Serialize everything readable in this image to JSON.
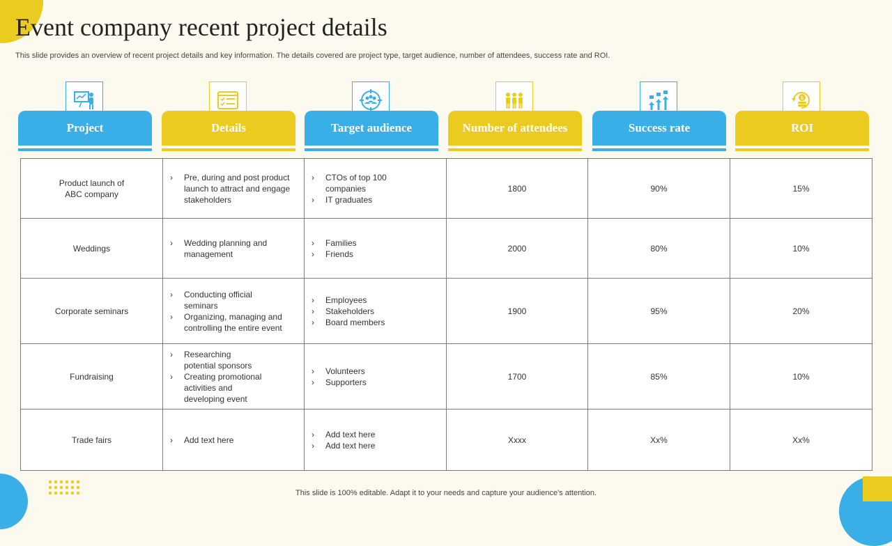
{
  "title": "Event company recent project details",
  "subtitle": "This slide provides an overview of recent project details and key information. The details covered are project type, target audience, number of attendees, success rate and ROI.",
  "headers": [
    {
      "label": "Project",
      "icon": "presentation-icon",
      "color": "#3aaee6"
    },
    {
      "label": "Details",
      "icon": "checklist-icon",
      "color": "#ebcb20"
    },
    {
      "label": "Target audience",
      "icon": "target-audience-icon",
      "color": "#3aaee6"
    },
    {
      "label": "Number of attendees",
      "icon": "people-group-icon",
      "color": "#ebcb20"
    },
    {
      "label": "Success rate",
      "icon": "growth-arrows-icon",
      "color": "#3aaee6"
    },
    {
      "label": "ROI",
      "icon": "coin-return-icon",
      "color": "#ebcb20"
    }
  ],
  "rows": [
    {
      "project": "Product launch of ABC company",
      "details": [
        "Pre, during and post product launch to attract and engage stakeholders"
      ],
      "audience": [
        "CTOs of top 100 companies",
        "IT graduates"
      ],
      "attendees": "1800",
      "success": "90%",
      "roi": "15%"
    },
    {
      "project": "Weddings",
      "details": [
        "Wedding planning and management"
      ],
      "audience": [
        "Families",
        "Friends"
      ],
      "attendees": "2000",
      "success": "80%",
      "roi": "10%"
    },
    {
      "project": "Corporate seminars",
      "details": [
        "Conducting official seminars",
        "Organizing, managing and controlling the entire event"
      ],
      "audience": [
        "Employees",
        "Stakeholders",
        "Board members"
      ],
      "attendees": "1900",
      "success": "95%",
      "roi": "20%"
    },
    {
      "project": "Fundraising",
      "details": [
        "Researching potential sponsors",
        "Creating promotional activities and developing event"
      ],
      "audience": [
        "Volunteers",
        "Supporters"
      ],
      "attendees": "1700",
      "success": "85%",
      "roi": "10%"
    },
    {
      "project": "Trade fairs",
      "details": [
        "Add text here"
      ],
      "audience": [
        "Add text here",
        "Add text here"
      ],
      "attendees": "Xxxx",
      "success": "Xx%",
      "roi": "Xx%"
    }
  ],
  "footer": "This slide is 100% editable. Adapt it to your needs and capture your audience's attention."
}
